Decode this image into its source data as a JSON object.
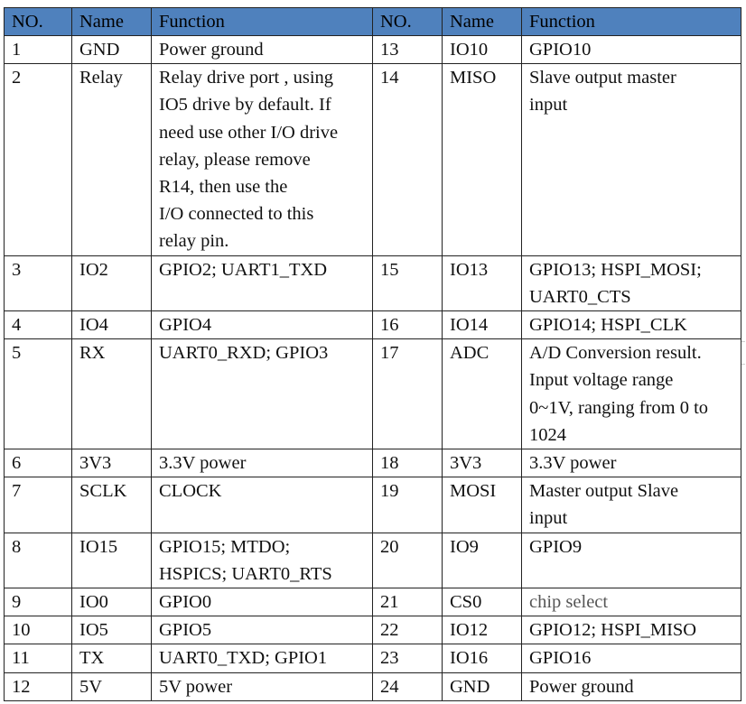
{
  "header": {
    "no": "NO.",
    "name": "Name",
    "function": "Function",
    "no2": "NO.",
    "name2": "Name",
    "function2": "Function"
  },
  "rows": [
    {
      "no": "1",
      "name": "GND",
      "function": "Power ground",
      "no2": "13",
      "name2": "IO10",
      "function2": "GPIO10"
    },
    {
      "no": "2",
      "name": "Relay",
      "function": "Relay drive port , using\nIO5 drive by default. If\nneed use other I/O drive\nrelay,   please remove\nR14, then use the\nI/O connected to this\nrelay pin.",
      "no2": "14",
      "name2": "MISO",
      "function2": "Slave output master\ninput"
    },
    {
      "no": "3",
      "name": "IO2",
      "function": "GPIO2; UART1_TXD",
      "no2": "15",
      "name2": "IO13",
      "function2": "GPIO13; HSPI_MOSI;\nUART0_CTS"
    },
    {
      "no": "4",
      "name": "IO4",
      "function": "GPIO4",
      "no2": "16",
      "name2": "IO14",
      "function2": "GPIO14; HSPI_CLK"
    },
    {
      "no": "5",
      "name": "RX",
      "function": "UART0_RXD; GPIO3",
      "no2": "17",
      "name2": "ADC",
      "function2": "A/D Conversion result.\nInput voltage range\n0~1V, ranging from 0 to\n1024"
    },
    {
      "no": "6",
      "name": "3V3",
      "function": "3.3V power",
      "no2": "18",
      "name2": "3V3",
      "function2": "3.3V power"
    },
    {
      "no": "7",
      "name": "SCLK",
      "function": "CLOCK",
      "no2": "19",
      "name2": "MOSI",
      "function2": "Master output Slave\ninput"
    },
    {
      "no": "8",
      "name": "IO15",
      "function": "GPIO15; MTDO;\nHSPICS; UART0_RTS",
      "no2": "20",
      "name2": "IO9",
      "function2": "GPIO9"
    },
    {
      "no": "9",
      "name": "IO0",
      "function": "GPIO0",
      "no2": "21",
      "name2": "CS0",
      "function2": "chip select"
    },
    {
      "no": "10",
      "name": "IO5",
      "function": "GPIO5",
      "no2": "22",
      "name2": "IO12",
      "function2": "GPIO12; HSPI_MISO"
    },
    {
      "no": "11",
      "name": "TX",
      "function": "UART0_TXD; GPIO1",
      "no2": "23",
      "name2": "IO16",
      "function2": "GPIO16"
    },
    {
      "no": "12",
      "name": "5V",
      "function": "5V power",
      "no2": "24",
      "name2": "GND",
      "function2": "Power ground"
    }
  ],
  "colors": {
    "header_bg": "#4f81bd",
    "border": "#222222",
    "text": "#111111",
    "muted_text": "#555555"
  }
}
